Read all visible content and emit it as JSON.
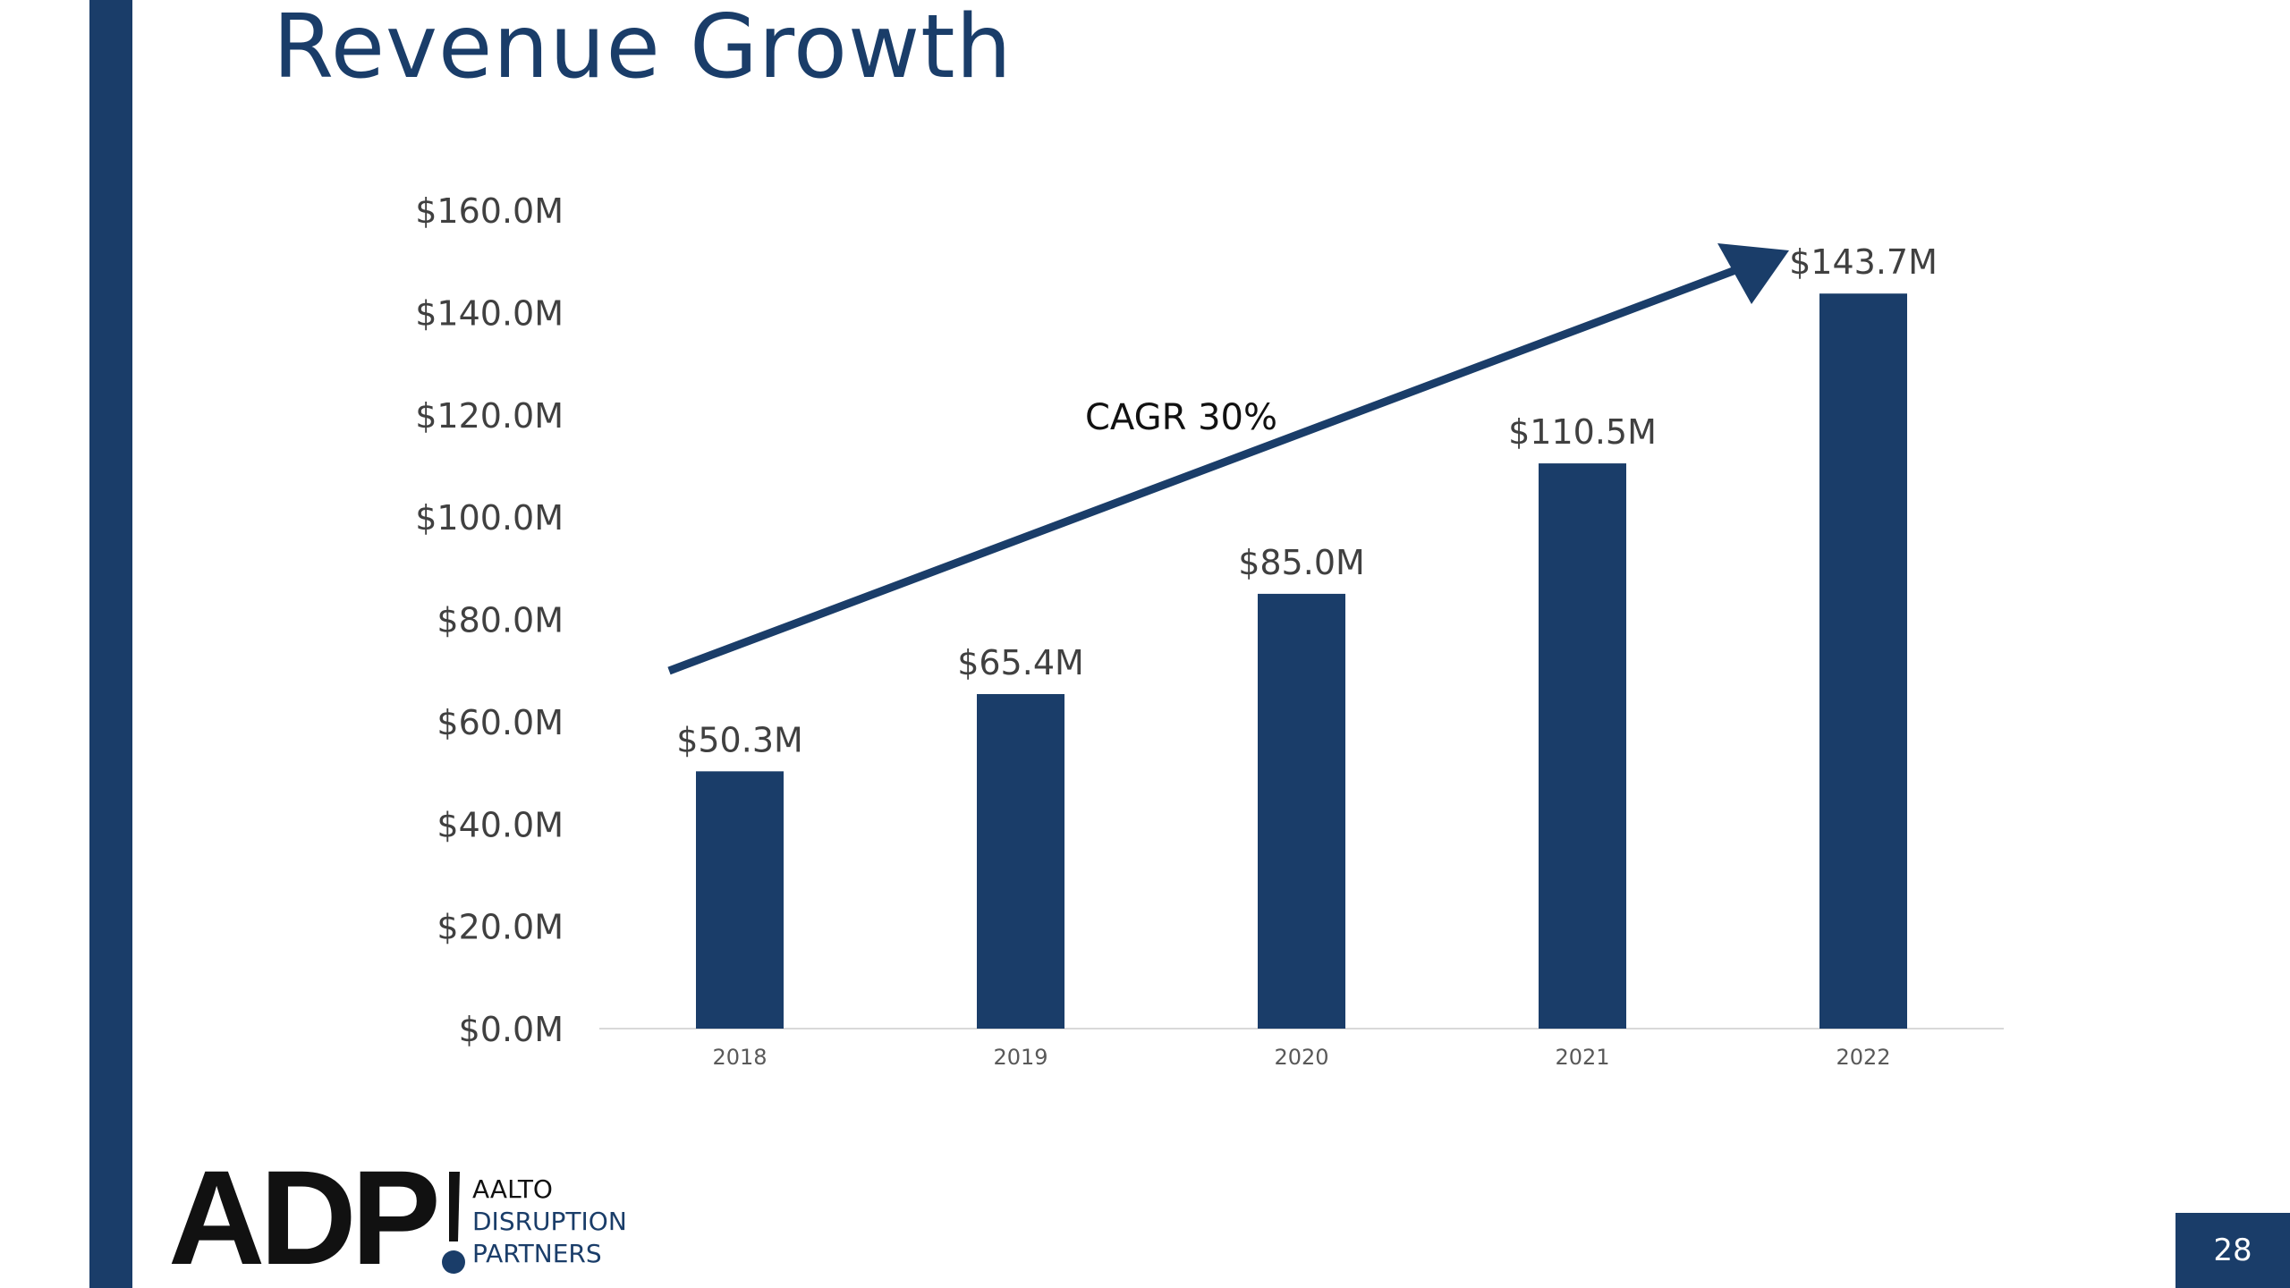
{
  "slide": {
    "title": "Revenue Growth",
    "page_number": "28",
    "accent_color": "#1a3d69"
  },
  "logo": {
    "letters": "ADP",
    "line1": "AALTO",
    "line2": "DISRUPTION",
    "line3": "PARTNERS"
  },
  "chart_data": {
    "type": "bar",
    "categories": [
      "2018",
      "2019",
      "2020",
      "2021",
      "2022"
    ],
    "values": [
      50.3,
      65.4,
      85.0,
      110.5,
      143.7
    ],
    "data_labels": [
      "$50.3M",
      "$65.4M",
      "$85.0M",
      "$110.5M",
      "$143.7M"
    ],
    "y_ticks": [
      0,
      20,
      40,
      60,
      80,
      100,
      120,
      140,
      160
    ],
    "y_tick_labels": [
      "$0.0M",
      "$20.0M",
      "$40.0M",
      "$60.0M",
      "$80.0M",
      "$100.0M",
      "$120.0M",
      "$140.0M",
      "$160.0M"
    ],
    "ylim": [
      0,
      160
    ],
    "grid": false,
    "bar_color": "#1a3d69",
    "annotation": {
      "text": "CAGR 30%",
      "arrow": true
    }
  }
}
